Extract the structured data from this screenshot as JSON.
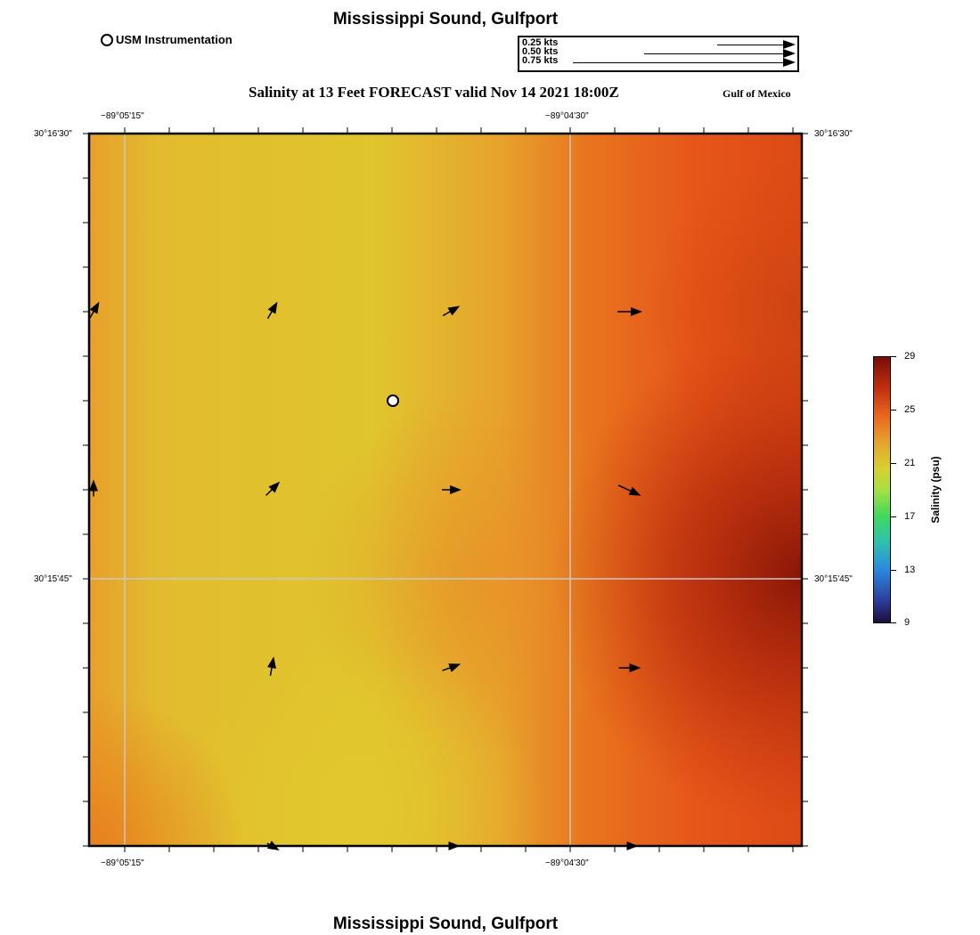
{
  "header": {
    "title": "Mississippi Sound, Gulfport",
    "subtitle": "Salinity at 13 Feet FORECAST valid Nov 14 2021 18:00Z",
    "region": "Gulf of Mexico",
    "footer_title": "Mississippi Sound, Gulfport"
  },
  "legend": {
    "station_label": "USM Instrumentation",
    "current_scale": [
      {
        "label": "0.25 kts",
        "speed_kts": 0.25
      },
      {
        "label": "0.50 kts",
        "speed_kts": 0.5
      },
      {
        "label": "0.75 kts",
        "speed_kts": 0.75
      }
    ]
  },
  "map": {
    "lon_ticks": [
      "−89°05'15\"",
      "−89°04'30\""
    ],
    "lat_ticks": [
      "30°16'30\"",
      "30°15'45\""
    ],
    "station": {
      "name": "USM Instrumentation",
      "col": 1.68,
      "row": 2.8
    },
    "current_vectors": [
      {
        "col": 0,
        "row": 0,
        "dir_deg": 60,
        "len": 0.3
      },
      {
        "col": 1,
        "row": 0,
        "dir_deg": 60,
        "len": 0.3
      },
      {
        "col": 2,
        "row": 0,
        "dir_deg": 30,
        "len": 0.3
      },
      {
        "col": 3,
        "row": 0,
        "dir_deg": 0,
        "len": 0.4
      },
      {
        "col": 0,
        "row": 1,
        "dir_deg": 90,
        "len": 0.25
      },
      {
        "col": 1,
        "row": 1,
        "dir_deg": 45,
        "len": 0.3
      },
      {
        "col": 2,
        "row": 1,
        "dir_deg": 0,
        "len": 0.3
      },
      {
        "col": 3,
        "row": 1,
        "dir_deg": -25,
        "len": 0.4
      },
      {
        "col": 1,
        "row": 2,
        "dir_deg": 80,
        "len": 0.3
      },
      {
        "col": 2,
        "row": 2,
        "dir_deg": 20,
        "len": 0.3
      },
      {
        "col": 3,
        "row": 2,
        "dir_deg": 0,
        "len": 0.35
      },
      {
        "col": 1,
        "row": 3,
        "dir_deg": -30,
        "len": 0.2
      },
      {
        "col": 2,
        "row": 3,
        "dir_deg": 0,
        "len": 0.25
      },
      {
        "col": 3,
        "row": 3,
        "dir_deg": 0,
        "len": 0.25
      }
    ]
  },
  "colorbar": {
    "title": "Salinity (psu)",
    "ticks": [
      "29",
      "25",
      "21",
      "17",
      "13",
      "9"
    ],
    "min": 9,
    "max": 29
  },
  "colors": {
    "yellow": "#e0c52e",
    "orange": "#e8922a",
    "red_orange": "#e6561a",
    "dark_red": "#941a09",
    "grid": "#c8c8c8"
  }
}
